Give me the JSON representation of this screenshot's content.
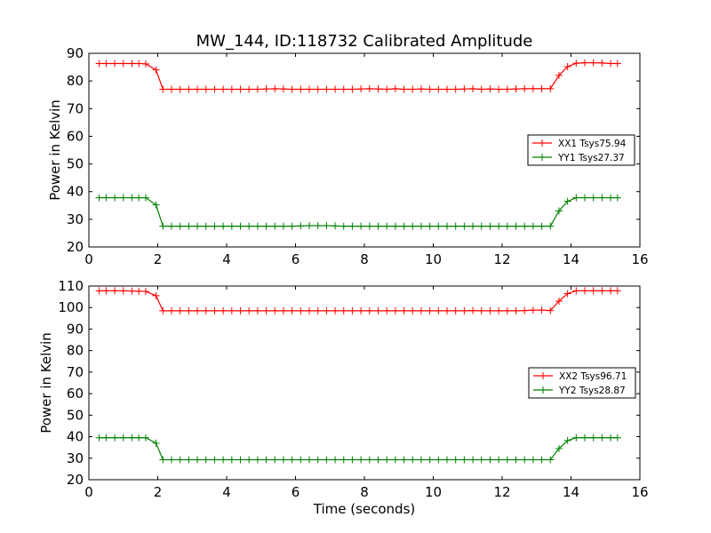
{
  "title": "MW_144, ID:118732 Calibrated Amplitude",
  "chart_data": [
    {
      "type": "line",
      "title": "MW_144, ID:118732 Calibrated Amplitude",
      "xlabel": "",
      "ylabel": "Power in Kelvin",
      "xlim": [
        0,
        16
      ],
      "ylim": [
        20,
        90
      ],
      "xticks": [
        0,
        2,
        4,
        6,
        8,
        10,
        12,
        14,
        16
      ],
      "yticks": [
        20,
        30,
        40,
        50,
        60,
        70,
        80,
        90
      ],
      "grid": false,
      "legend_position": "right",
      "x": [
        0.3,
        0.5,
        0.75,
        1.0,
        1.25,
        1.45,
        1.65,
        1.95,
        2.15,
        2.4,
        2.65,
        2.9,
        3.15,
        3.4,
        3.65,
        3.9,
        4.15,
        4.4,
        4.65,
        4.9,
        5.15,
        5.4,
        5.65,
        5.9,
        6.15,
        6.4,
        6.65,
        6.9,
        7.15,
        7.4,
        7.65,
        7.9,
        8.15,
        8.4,
        8.65,
        8.9,
        9.15,
        9.4,
        9.65,
        9.9,
        10.15,
        10.4,
        10.65,
        10.9,
        11.15,
        11.4,
        11.65,
        11.9,
        12.15,
        12.4,
        12.65,
        12.9,
        13.15,
        13.4,
        13.65,
        13.9,
        14.15,
        14.4,
        14.65,
        14.9,
        15.15,
        15.35
      ],
      "series": [
        {
          "name": "XX1 Tsys75.94",
          "color": "#ff0000",
          "values": [
            86.3,
            86.3,
            86.3,
            86.3,
            86.3,
            86.3,
            86.2,
            84.0,
            77.0,
            77.0,
            77.0,
            77.0,
            77.0,
            77.0,
            77.0,
            77.0,
            77.0,
            77.0,
            77.0,
            77.0,
            77.1,
            77.2,
            77.1,
            77.0,
            77.0,
            77.0,
            77.0,
            77.0,
            77.0,
            77.0,
            77.0,
            77.1,
            77.2,
            77.1,
            77.0,
            77.2,
            77.0,
            77.0,
            77.1,
            77.0,
            77.0,
            77.0,
            77.0,
            77.1,
            77.2,
            77.0,
            77.1,
            77.0,
            77.0,
            77.1,
            77.2,
            77.2,
            77.2,
            77.2,
            82.0,
            85.2,
            86.4,
            86.6,
            86.6,
            86.5,
            86.3,
            86.3
          ]
        },
        {
          "name": "YY1 Tsys27.37",
          "color": "#008000",
          "values": [
            37.8,
            37.8,
            37.8,
            37.8,
            37.8,
            37.8,
            37.8,
            35.2,
            27.5,
            27.5,
            27.5,
            27.5,
            27.5,
            27.5,
            27.5,
            27.5,
            27.5,
            27.5,
            27.5,
            27.5,
            27.5,
            27.5,
            27.5,
            27.5,
            27.6,
            27.7,
            27.7,
            27.7,
            27.6,
            27.5,
            27.5,
            27.5,
            27.5,
            27.5,
            27.5,
            27.5,
            27.5,
            27.5,
            27.5,
            27.5,
            27.5,
            27.5,
            27.5,
            27.5,
            27.5,
            27.5,
            27.5,
            27.5,
            27.5,
            27.5,
            27.5,
            27.5,
            27.5,
            27.5,
            33.0,
            36.5,
            37.8,
            37.8,
            37.8,
            37.8,
            37.8,
            37.8
          ]
        }
      ]
    },
    {
      "type": "line",
      "title": "",
      "xlabel": "Time (seconds)",
      "ylabel": "Power in Kelvin",
      "xlim": [
        0,
        16
      ],
      "ylim": [
        20,
        110
      ],
      "xticks": [
        0,
        2,
        4,
        6,
        8,
        10,
        12,
        14,
        16
      ],
      "yticks": [
        20,
        30,
        40,
        50,
        60,
        70,
        80,
        90,
        100,
        110
      ],
      "grid": false,
      "legend_position": "right",
      "x": [
        0.3,
        0.5,
        0.75,
        1.0,
        1.25,
        1.45,
        1.65,
        1.95,
        2.15,
        2.4,
        2.65,
        2.9,
        3.15,
        3.4,
        3.65,
        3.9,
        4.15,
        4.4,
        4.65,
        4.9,
        5.15,
        5.4,
        5.65,
        5.9,
        6.15,
        6.4,
        6.65,
        6.9,
        7.15,
        7.4,
        7.65,
        7.9,
        8.15,
        8.4,
        8.65,
        8.9,
        9.15,
        9.4,
        9.65,
        9.9,
        10.15,
        10.4,
        10.65,
        10.9,
        11.15,
        11.4,
        11.65,
        11.9,
        12.15,
        12.4,
        12.65,
        12.9,
        13.15,
        13.4,
        13.65,
        13.9,
        14.15,
        14.4,
        14.65,
        14.9,
        15.15,
        15.35
      ],
      "series": [
        {
          "name": "XX2 Tsys96.71",
          "color": "#ff0000",
          "values": [
            107.8,
            107.8,
            107.8,
            107.8,
            107.7,
            107.6,
            107.5,
            105.5,
            98.5,
            98.5,
            98.5,
            98.5,
            98.5,
            98.5,
            98.5,
            98.5,
            98.5,
            98.5,
            98.5,
            98.5,
            98.5,
            98.5,
            98.5,
            98.5,
            98.5,
            98.5,
            98.5,
            98.5,
            98.5,
            98.5,
            98.5,
            98.5,
            98.5,
            98.5,
            98.5,
            98.5,
            98.5,
            98.5,
            98.5,
            98.5,
            98.5,
            98.5,
            98.5,
            98.5,
            98.6,
            98.5,
            98.5,
            98.5,
            98.5,
            98.5,
            98.6,
            98.8,
            98.8,
            98.6,
            103.0,
            106.5,
            107.8,
            107.8,
            107.8,
            107.8,
            107.8,
            107.8
          ]
        },
        {
          "name": "YY2 Tsys28.87",
          "color": "#008000",
          "values": [
            39.5,
            39.5,
            39.5,
            39.5,
            39.5,
            39.5,
            39.5,
            37.0,
            29.3,
            29.3,
            29.3,
            29.3,
            29.3,
            29.3,
            29.3,
            29.3,
            29.3,
            29.3,
            29.3,
            29.3,
            29.3,
            29.3,
            29.3,
            29.3,
            29.3,
            29.3,
            29.3,
            29.3,
            29.3,
            29.3,
            29.3,
            29.3,
            29.3,
            29.3,
            29.3,
            29.3,
            29.3,
            29.3,
            29.3,
            29.3,
            29.3,
            29.3,
            29.3,
            29.3,
            29.3,
            29.3,
            29.3,
            29.3,
            29.3,
            29.3,
            29.3,
            29.3,
            29.3,
            29.3,
            34.5,
            38.2,
            39.5,
            39.5,
            39.5,
            39.5,
            39.5,
            39.5
          ]
        }
      ]
    }
  ]
}
